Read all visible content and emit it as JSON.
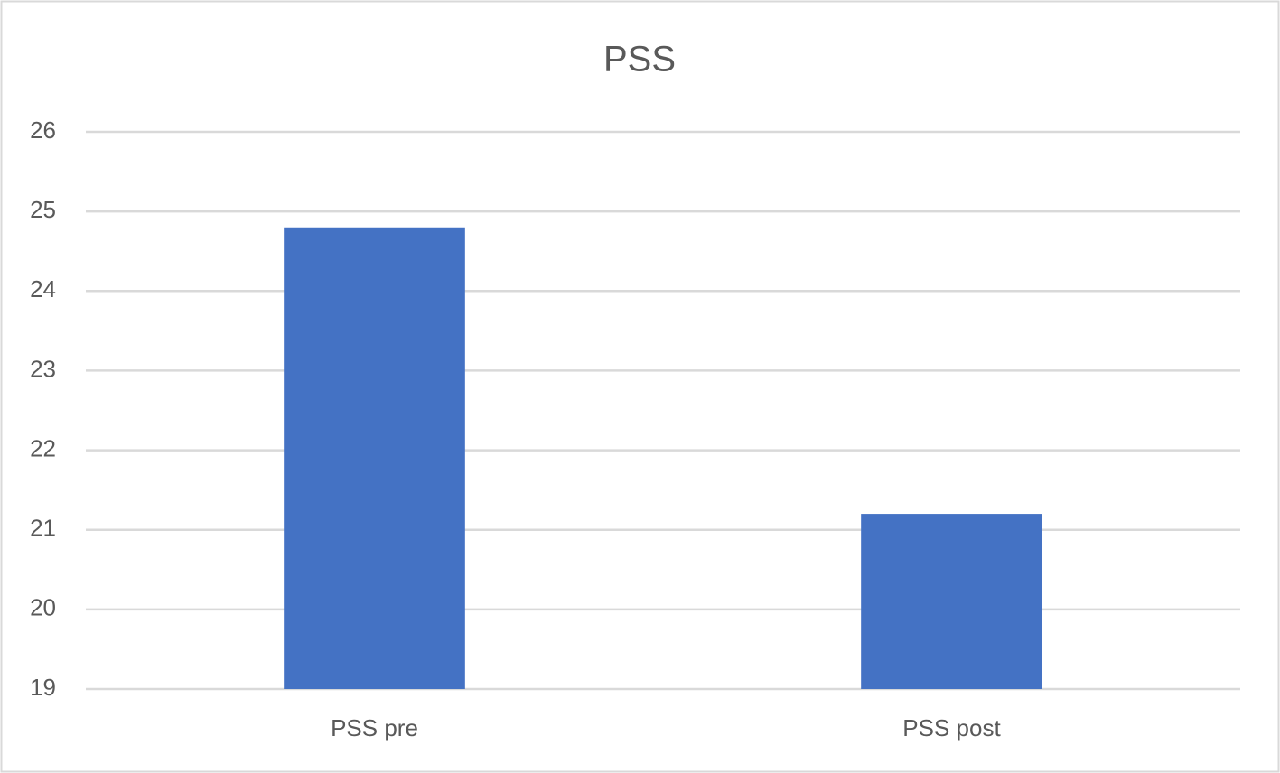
{
  "chart_data": {
    "type": "bar",
    "title": "PSS",
    "categories": [
      "PSS pre",
      "PSS post"
    ],
    "values": [
      24.8,
      21.2
    ],
    "color": "#4472c4",
    "ylim": [
      19,
      26
    ],
    "yticks": [
      19,
      20,
      21,
      22,
      23,
      24,
      25,
      26
    ],
    "grid": true
  }
}
